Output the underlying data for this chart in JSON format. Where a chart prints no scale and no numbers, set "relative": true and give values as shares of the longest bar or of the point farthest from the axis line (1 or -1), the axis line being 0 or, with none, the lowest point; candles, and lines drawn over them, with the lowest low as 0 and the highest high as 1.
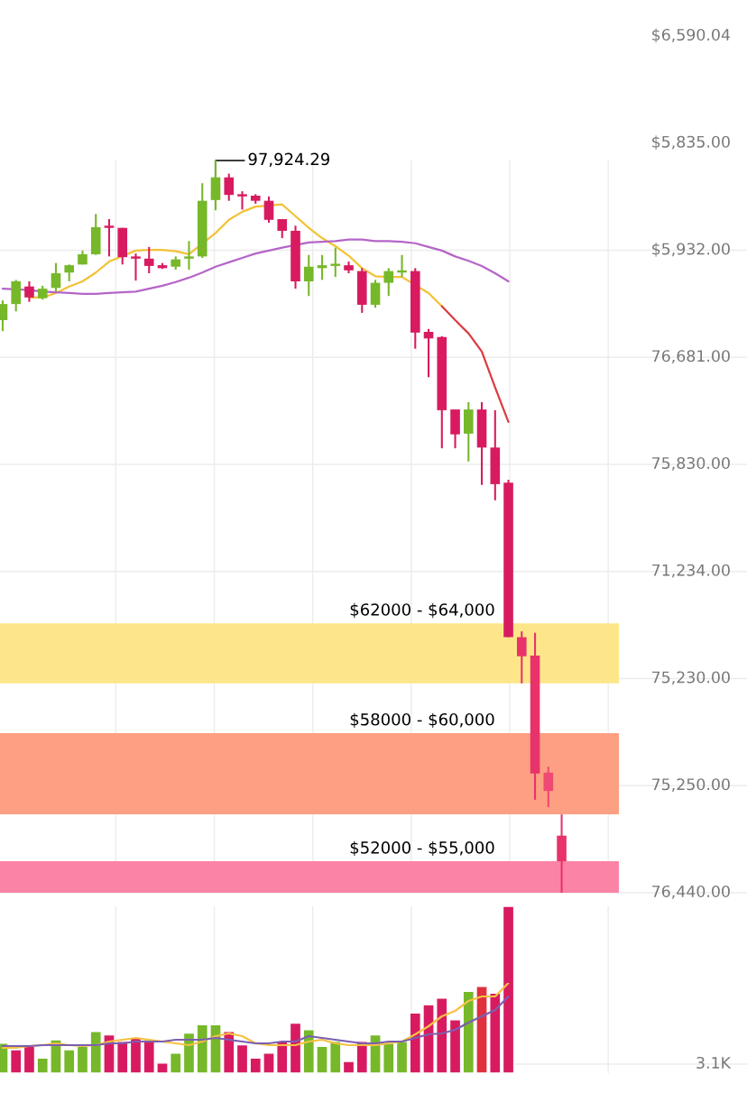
{
  "chart_data": [
    {
      "type": "candlestick",
      "relative": true,
      "grid": true,
      "categories": [
        null,
        null,
        null,
        null,
        null,
        null,
        null,
        null,
        null,
        null,
        null,
        null,
        null,
        null,
        null,
        null,
        null,
        null,
        null,
        null,
        null,
        null,
        null,
        null,
        null,
        null,
        null,
        null,
        null,
        null,
        null,
        null,
        null,
        null,
        null,
        null,
        null,
        null,
        null,
        null,
        null,
        null,
        null
      ],
      "ohlc": [
        [
          0.782,
          0.809,
          0.767,
          0.804
        ],
        [
          0.804,
          0.837,
          0.794,
          0.835
        ],
        [
          0.828,
          0.835,
          0.807,
          0.813
        ],
        [
          0.812,
          0.829,
          0.81,
          0.825
        ],
        [
          0.826,
          0.86,
          0.821,
          0.846
        ],
        [
          0.847,
          0.858,
          0.835,
          0.857
        ],
        [
          0.858,
          0.877,
          0.858,
          0.872
        ],
        [
          0.872,
          0.927,
          0.871,
          0.909
        ],
        [
          0.91,
          0.92,
          0.869,
          0.908
        ],
        [
          0.908,
          0.908,
          0.858,
          0.868
        ],
        [
          0.868,
          0.873,
          0.836,
          0.866
        ],
        [
          0.866,
          0.882,
          0.846,
          0.856
        ],
        [
          0.857,
          0.86,
          0.852,
          0.853
        ],
        [
          0.855,
          0.869,
          0.851,
          0.865
        ],
        [
          0.866,
          0.89,
          0.851,
          0.869
        ],
        [
          0.869,
          0.969,
          0.867,
          0.945
        ],
        [
          0.946,
          1.0,
          0.932,
          0.977
        ],
        [
          0.977,
          0.982,
          0.945,
          0.953
        ],
        [
          0.952,
          0.958,
          0.933,
          0.951
        ],
        [
          0.952,
          0.954,
          0.941,
          0.945
        ],
        [
          0.945,
          0.951,
          0.915,
          0.919
        ],
        [
          0.92,
          0.92,
          0.894,
          0.904
        ],
        [
          0.904,
          0.911,
          0.825,
          0.835
        ],
        [
          0.835,
          0.871,
          0.815,
          0.855
        ],
        [
          0.853,
          0.871,
          0.837,
          0.857
        ],
        [
          0.856,
          0.881,
          0.841,
          0.858
        ],
        [
          0.857,
          0.862,
          0.846,
          0.85
        ],
        [
          0.849,
          0.853,
          0.792,
          0.803
        ],
        [
          0.803,
          0.837,
          0.799,
          0.833
        ],
        [
          0.833,
          0.853,
          0.815,
          0.849
        ],
        [
          0.847,
          0.871,
          0.841,
          0.849
        ],
        [
          0.849,
          0.853,
          0.743,
          0.765
        ],
        [
          0.766,
          0.77,
          0.704,
          0.757
        ],
        [
          0.759,
          0.76,
          0.607,
          0.659
        ],
        [
          0.66,
          0.66,
          0.607,
          0.626
        ],
        [
          0.627,
          0.67,
          0.589,
          0.66
        ],
        [
          0.66,
          0.67,
          0.557,
          0.608
        ],
        [
          0.608,
          0.659,
          0.536,
          0.558
        ],
        [
          0.56,
          0.564,
          0.349,
          0.349
        ],
        [
          0.349,
          0.357,
          0.286,
          0.323
        ],
        [
          0.324,
          0.355,
          0.127,
          0.163
        ],
        [
          0.164,
          0.172,
          0.117,
          0.139
        ],
        [
          0.078,
          0.107,
          0.0,
          0.043
        ]
      ],
      "colors": [
        "#76b82a",
        "#76b82a",
        "#d81b60",
        "#76b82a",
        "#76b82a",
        "#76b82a",
        "#76b82a",
        "#76b82a",
        "#d81b60",
        "#d81b60",
        "#d81b60",
        "#d81b60",
        "#d81b60",
        "#76b82a",
        "#76b82a",
        "#76b82a",
        "#76b82a",
        "#d81b60",
        "#d81b60",
        "#d81b60",
        "#d81b60",
        "#d81b60",
        "#d81b60",
        "#76b82a",
        "#76b82a",
        "#76b82a",
        "#d81b60",
        "#d81b60",
        "#76b82a",
        "#76b82a",
        "#76b82a",
        "#d81b60",
        "#d81b60",
        "#d81b60",
        "#d81b60",
        "#76b82a",
        "#d81b60",
        "#d81b60",
        "#d81b60",
        "#e8336a",
        "#e8336a",
        "#ef4a73",
        "#e8336a"
      ],
      "series": [
        {
          "type": "line",
          "color": "#f2c237",
          "values": [
            null,
            null,
            0.813,
            0.813,
            0.819,
            0.828,
            0.835,
            0.847,
            0.862,
            null,
            0.877,
            0.878,
            0.878,
            0.876,
            0.872,
            null,
            0.901,
            0.919,
            0.93,
            0.937,
            null,
            0.94,
            0.924,
            0.908,
            0.894,
            0.883,
            0.87,
            0.853,
            0.842,
            0.841,
            0.841,
            null,
            0.819,
            0.801,
            null,
            null,
            null,
            null,
            null,
            null,
            null,
            null,
            null
          ]
        },
        {
          "type": "line",
          "color": "#dc3b3f",
          "values": [
            null,
            null,
            null,
            null,
            null,
            null,
            null,
            null,
            null,
            null,
            null,
            null,
            null,
            null,
            null,
            null,
            null,
            null,
            null,
            null,
            null,
            null,
            null,
            null,
            null,
            null,
            null,
            null,
            null,
            null,
            null,
            null,
            null,
            0.801,
            0.782,
            0.764,
            0.739,
            0.69,
            0.643,
            null,
            null,
            null,
            null
          ]
        },
        {
          "type": "line",
          "color": "#b565c8",
          "values": [
            0.825,
            null,
            0.823,
            0.821,
            0.82,
            0.819,
            0.818,
            0.818,
            0.819,
            0.82,
            0.821,
            0.825,
            0.829,
            0.834,
            0.84,
            0.847,
            0.855,
            0.861,
            0.867,
            0.873,
            0.877,
            0.881,
            null,
            0.888,
            0.889,
            0.89,
            0.892,
            0.892,
            0.89,
            0.89,
            0.889,
            0.887,
            0.882,
            0.877,
            0.869,
            0.863,
            0.856,
            0.846,
            0.835,
            null,
            null,
            null,
            null
          ]
        }
      ],
      "bands": [
        {
          "axis": "y",
          "from": 0.286,
          "to": 0.368,
          "label": "$62000 - $64,000",
          "color": "#fde68a"
        },
        {
          "axis": "y",
          "from": 0.107,
          "to": 0.218,
          "label": "$58000 - $60,000",
          "color": "#fc9f82"
        },
        {
          "axis": "y",
          "from": 0.0,
          "to": 0.043,
          "label": "$52000 - $55,000",
          "color": "#fb84a6"
        }
      ],
      "annotations": [
        "97,924.29",
        "$6,590.04",
        "$5,835.00",
        "$5,932.00",
        "76,681.00",
        "75,830.00",
        "71,234.00",
        "75,230.00",
        "75,250.00",
        "76,440.00"
      ]
    },
    {
      "type": "bar",
      "relative": true,
      "grid": true,
      "categories": [
        null,
        null,
        null,
        null,
        null,
        null,
        null,
        null,
        null,
        null,
        null,
        null,
        null,
        null,
        null,
        null,
        null,
        null,
        null,
        null,
        null,
        null,
        null,
        null,
        null,
        null,
        null,
        null,
        null,
        null,
        null,
        null,
        null,
        null,
        null,
        null,
        null,
        null,
        null
      ],
      "values": [
        0.18,
        0.14,
        0.16,
        0.09,
        0.2,
        0.14,
        0.16,
        0.25,
        0.23,
        0.19,
        0.21,
        0.2,
        0.06,
        0.12,
        0.24,
        0.29,
        0.29,
        0.25,
        0.17,
        0.09,
        0.12,
        0.19,
        0.3,
        0.26,
        0.16,
        0.19,
        0.07,
        0.19,
        0.23,
        0.18,
        0.19,
        0.36,
        0.41,
        0.45,
        0.32,
        0.49,
        0.52,
        0.48,
        1.0
      ],
      "colors": [
        "#76b82a",
        "#d81b60",
        "#d81b60",
        "#76b82a",
        "#76b82a",
        "#76b82a",
        "#76b82a",
        "#76b82a",
        "#d81b60",
        "#d81b60",
        "#d81b60",
        "#d81b60",
        "#d81b60",
        "#76b82a",
        "#76b82a",
        "#76b82a",
        "#76b82a",
        "#d81b60",
        "#d81b60",
        "#d81b60",
        "#d81b60",
        "#d81b60",
        "#d81b60",
        "#76b82a",
        "#76b82a",
        "#76b82a",
        "#d81b60",
        "#d81b60",
        "#76b82a",
        "#76b82a",
        "#76b82a",
        "#d81b60",
        "#d81b60",
        "#d81b60",
        "#d81b60",
        "#76b82a",
        "#e0303f",
        "#d81b60",
        "#d81b60"
      ],
      "annotations": [
        "3.1K"
      ]
    },
    {
      "type": "line",
      "relative": true,
      "categories": [
        null,
        null,
        null,
        null,
        null,
        null,
        null,
        null,
        null,
        null,
        null,
        null,
        null,
        null,
        null,
        null,
        null,
        null,
        null,
        null,
        null,
        null,
        null,
        null,
        null,
        null,
        null,
        null,
        null,
        null,
        null,
        null,
        null,
        null,
        null,
        null,
        null,
        null,
        null
      ],
      "series": [
        {
          "color": "#f5c242",
          "values": [
            0.28,
            0.28,
            0.3,
            0.31,
            0.33,
            0.31,
            0.3,
            0.31,
            0.35,
            0.37,
            0.39,
            0.37,
            0.35,
            0.33,
            0.31,
            0.35,
            0.41,
            0.44,
            0.41,
            0.33,
            0.31,
            0.31,
            0.31,
            0.35,
            0.37,
            0.33,
            0.31,
            0.31,
            0.31,
            0.33,
            0.35,
            0.43,
            0.52,
            0.63,
            0.69,
            0.8,
            0.85,
            0.85,
            1.0
          ]
        },
        {
          "color": "#7b5fb0",
          "values": [
            0.3,
            0.3,
            0.3,
            0.31,
            0.31,
            0.31,
            0.31,
            0.31,
            0.33,
            0.33,
            0.35,
            0.35,
            0.35,
            0.37,
            0.37,
            0.37,
            0.39,
            0.37,
            0.35,
            0.33,
            0.33,
            0.35,
            0.35,
            0.41,
            0.39,
            0.37,
            0.35,
            0.33,
            0.33,
            0.35,
            0.35,
            0.39,
            0.43,
            0.44,
            0.48,
            0.56,
            0.63,
            0.7,
            0.85
          ]
        }
      ]
    }
  ]
}
